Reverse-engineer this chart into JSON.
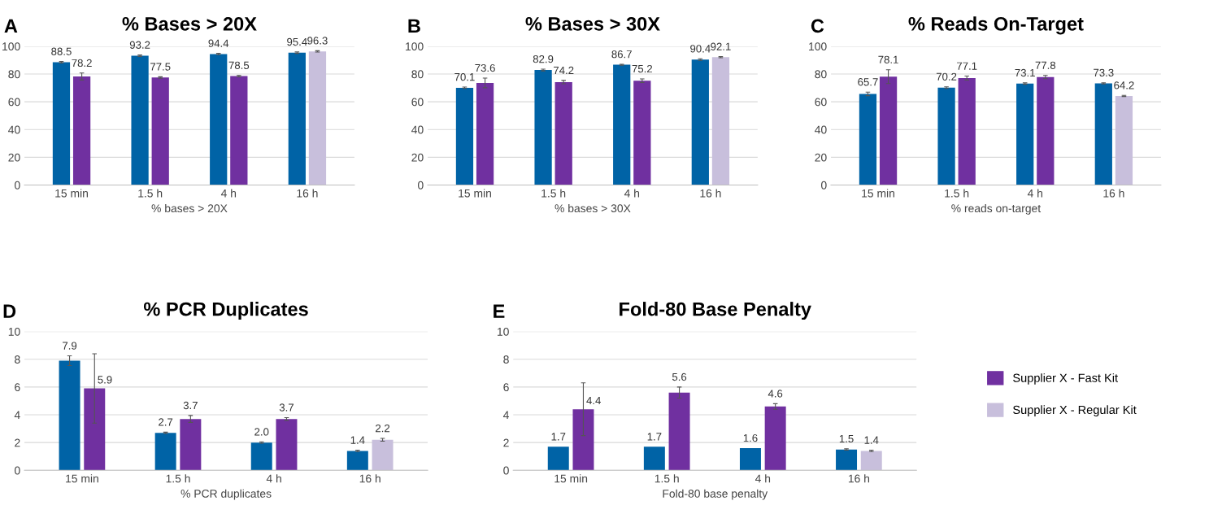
{
  "chart_data": [
    {
      "type": "bar",
      "title": "% Bases > 20X",
      "xlabel": "% bases > 20X",
      "annotations": [
        "A"
      ],
      "categories": [
        "15 min",
        "1.5 h",
        "4 h",
        "16 h"
      ],
      "ylim": [
        0,
        100
      ],
      "yticks": [
        0,
        20,
        40,
        60,
        80,
        100
      ],
      "grid": "y",
      "series": [
        {
          "color": "#0063a6",
          "values": [
            88.5,
            93.2,
            94.4,
            95.4
          ],
          "errors": [
            0.5,
            0.5,
            0.5,
            0.5
          ],
          "value_labels": [
            "88.5",
            "93.2",
            "94.4",
            "95.4"
          ]
        },
        {
          "color": "#7030a0",
          "values": [
            78.2,
            77.5,
            78.5,
            null
          ],
          "errors": [
            2.5,
            0.5,
            0.5,
            null
          ],
          "value_labels": [
            "78.2",
            "77.5",
            "78.5",
            null
          ]
        },
        {
          "color": "#c8bfdc",
          "values": [
            null,
            null,
            null,
            96.3
          ],
          "errors": [
            null,
            null,
            null,
            0.5
          ],
          "value_labels": [
            null,
            null,
            null,
            "96.3"
          ]
        }
      ]
    },
    {
      "type": "bar",
      "title": "% Bases > 30X",
      "xlabel": "% bases > 30X",
      "annotations": [
        "B"
      ],
      "categories": [
        "15 min",
        "1.5 h",
        "4 h",
        "16 h"
      ],
      "ylim": [
        0,
        100
      ],
      "yticks": [
        0,
        20,
        40,
        60,
        80,
        100
      ],
      "grid": "y",
      "series": [
        {
          "color": "#0063a6",
          "values": [
            70.1,
            82.9,
            86.7,
            90.4
          ],
          "errors": [
            0.5,
            0.6,
            0.3,
            0.6
          ],
          "value_labels": [
            "70.1",
            "82.9",
            "86.7",
            "90.4"
          ]
        },
        {
          "color": "#7030a0",
          "values": [
            73.6,
            74.2,
            75.2,
            null
          ],
          "errors": [
            3.5,
            1.2,
            1.3,
            null
          ],
          "value_labels": [
            "73.6",
            "74.2",
            "75.2",
            null
          ]
        },
        {
          "color": "#c8bfdc",
          "values": [
            null,
            null,
            null,
            92.1
          ],
          "errors": [
            null,
            null,
            null,
            0.4
          ],
          "value_labels": [
            null,
            null,
            null,
            "92.1"
          ]
        }
      ]
    },
    {
      "type": "bar",
      "title": "% Reads On-Target",
      "xlabel": "% reads on-target",
      "annotations": [
        "C"
      ],
      "categories": [
        "15 min",
        "1.5 h",
        "4 h",
        "16 h"
      ],
      "ylim": [
        0,
        100
      ],
      "yticks": [
        0,
        20,
        40,
        60,
        80,
        100
      ],
      "grid": "y",
      "series": [
        {
          "color": "#0063a6",
          "values": [
            65.7,
            70.2,
            73.1,
            73.3
          ],
          "errors": [
            1.3,
            0.6,
            0.5,
            0.4
          ],
          "value_labels": [
            "65.7",
            "70.2",
            "73.1",
            "73.3"
          ]
        },
        {
          "color": "#7030a0",
          "values": [
            78.1,
            77.1,
            77.8,
            null
          ],
          "errors": [
            5,
            1.4,
            1.2,
            null
          ],
          "value_labels": [
            "78.1",
            "77.1",
            "77.8",
            null
          ]
        },
        {
          "color": "#c8bfdc",
          "values": [
            null,
            null,
            null,
            64.2
          ],
          "errors": [
            null,
            null,
            null,
            0.4
          ],
          "value_labels": [
            null,
            null,
            null,
            "64.2"
          ]
        }
      ]
    },
    {
      "type": "bar",
      "title": "% PCR Duplicates",
      "xlabel": "% PCR duplicates",
      "annotations": [
        "D"
      ],
      "categories": [
        "15 min",
        "1.5 h",
        "4 h",
        "16 h"
      ],
      "ylim": [
        0,
        10
      ],
      "yticks": [
        0,
        2,
        4,
        6,
        8,
        10
      ],
      "grid": "y",
      "series": [
        {
          "color": "#0063a6",
          "values": [
            7.9,
            2.7,
            2.0,
            1.4
          ],
          "errors": [
            0.35,
            0.05,
            0.05,
            0.05
          ],
          "value_labels": [
            "7.9",
            "2.7",
            "2.0",
            "1.4"
          ]
        },
        {
          "color": "#7030a0",
          "values": [
            5.9,
            3.7,
            3.7,
            null
          ],
          "errors": [
            2.5,
            0.25,
            0.1,
            null
          ],
          "value_labels": [
            "5.9",
            "3.7",
            "3.7",
            null
          ]
        },
        {
          "color": "#c8bfdc",
          "values": [
            null,
            null,
            null,
            2.2
          ],
          "errors": [
            null,
            null,
            null,
            0.1
          ],
          "value_labels": [
            null,
            null,
            null,
            "2.2"
          ]
        }
      ]
    },
    {
      "type": "bar",
      "title": "Fold-80 Base Penalty",
      "xlabel": "Fold-80 base penalty",
      "annotations": [
        "E"
      ],
      "categories": [
        "15 min",
        "1.5 h",
        "4 h",
        "16 h"
      ],
      "ylim": [
        0,
        10
      ],
      "yticks": [
        0,
        2,
        4,
        6,
        8,
        10
      ],
      "grid": "y",
      "legend": "right",
      "series": [
        {
          "color": "#0063a6",
          "values": [
            1.7,
            1.7,
            1.6,
            1.5
          ],
          "errors": [
            null,
            null,
            null,
            0.05
          ],
          "value_labels": [
            "1.7",
            "1.7",
            "1.6",
            "1.5"
          ]
        },
        {
          "name": "Supplier X - Fast Kit",
          "color": "#7030a0",
          "values": [
            4.4,
            5.6,
            4.6,
            null
          ],
          "errors": [
            1.9,
            0.4,
            0.2,
            null
          ],
          "value_labels": [
            "4.4",
            "5.6",
            "4.6",
            null
          ]
        },
        {
          "name": "Supplier X - Regular Kit",
          "color": "#c8bfdc",
          "values": [
            null,
            null,
            null,
            1.4
          ],
          "errors": [
            null,
            null,
            null,
            0.05
          ],
          "value_labels": [
            null,
            null,
            null,
            "1.4"
          ]
        }
      ]
    }
  ]
}
